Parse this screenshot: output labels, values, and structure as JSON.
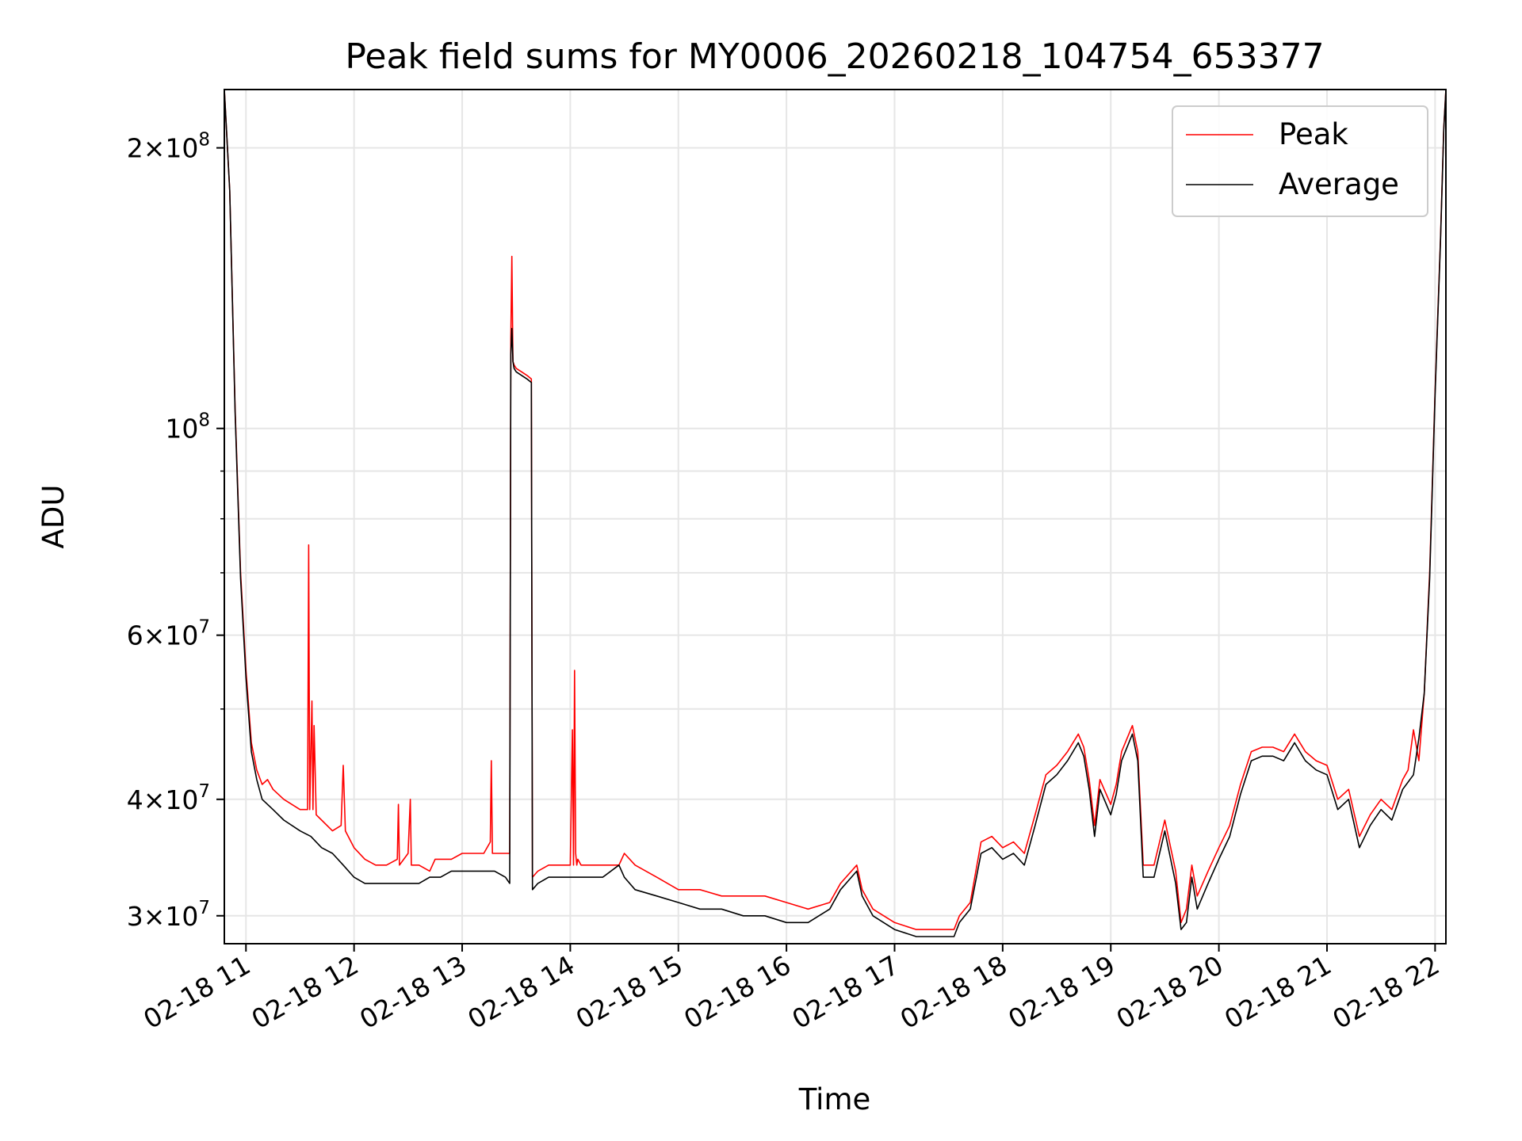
{
  "chart_data": {
    "type": "line",
    "title": "Peak field sums for MY0006_20260218_104754_653377",
    "xlabel": "Time",
    "ylabel": "ADU",
    "xscale": "linear (hours)",
    "yscale": "log",
    "xlim_hours": [
      10.8,
      22.1
    ],
    "ylim": [
      28000000,
      231000000
    ],
    "grid": true,
    "legend_position": "top-right",
    "x_ticks": [
      {
        "value": 11,
        "label": "02-18 11"
      },
      {
        "value": 12,
        "label": "02-18 12"
      },
      {
        "value": 13,
        "label": "02-18 13"
      },
      {
        "value": 14,
        "label": "02-18 14"
      },
      {
        "value": 15,
        "label": "02-18 15"
      },
      {
        "value": 16,
        "label": "02-18 16"
      },
      {
        "value": 17,
        "label": "02-18 17"
      },
      {
        "value": 18,
        "label": "02-18 18"
      },
      {
        "value": 19,
        "label": "02-18 19"
      },
      {
        "value": 20,
        "label": "02-18 20"
      },
      {
        "value": 21,
        "label": "02-18 21"
      },
      {
        "value": 22,
        "label": "02-18 22"
      }
    ],
    "y_ticks": [
      {
        "value": 30000000,
        "base": "3×10",
        "exp": "7"
      },
      {
        "value": 40000000,
        "base": "4×10",
        "exp": "7"
      },
      {
        "value": 60000000,
        "base": "6×10",
        "exp": "7"
      },
      {
        "value": 100000000,
        "base": "10",
        "exp": "8"
      },
      {
        "value": 200000000,
        "base": "2×10",
        "exp": "8"
      }
    ],
    "y_minor_ticks": [
      50000000,
      70000000,
      80000000,
      90000000
    ],
    "series": [
      {
        "name": "Peak",
        "color": "#ff0000",
        "x": [
          10.8,
          10.85,
          10.9,
          10.95,
          11.0,
          11.05,
          11.1,
          11.15,
          11.2,
          11.25,
          11.35,
          11.5,
          11.57,
          11.58,
          11.59,
          11.61,
          11.62,
          11.63,
          11.65,
          11.7,
          11.8,
          11.88,
          11.9,
          11.92,
          12.0,
          12.1,
          12.2,
          12.3,
          12.4,
          12.41,
          12.42,
          12.5,
          12.52,
          12.53,
          12.6,
          12.7,
          12.75,
          12.8,
          12.9,
          13.0,
          13.2,
          13.26,
          13.27,
          13.28,
          13.4,
          13.44,
          13.45,
          13.46,
          13.47,
          13.48,
          13.5,
          13.55,
          13.6,
          13.64,
          13.65,
          13.7,
          13.8,
          14.0,
          14.02,
          14.03,
          14.04,
          14.05,
          14.06,
          14.07,
          14.1,
          14.3,
          14.45,
          14.5,
          14.6,
          14.8,
          15.0,
          15.2,
          15.4,
          15.6,
          15.8,
          16.0,
          16.2,
          16.4,
          16.5,
          16.65,
          16.7,
          16.8,
          17.0,
          17.2,
          17.4,
          17.55,
          17.6,
          17.7,
          17.8,
          17.9,
          18.0,
          18.1,
          18.2,
          18.3,
          18.4,
          18.5,
          18.6,
          18.7,
          18.75,
          18.8,
          18.85,
          18.9,
          19.0,
          19.05,
          19.1,
          19.2,
          19.25,
          19.3,
          19.4,
          19.5,
          19.6,
          19.65,
          19.7,
          19.75,
          19.8,
          19.9,
          20.0,
          20.1,
          20.2,
          20.3,
          20.4,
          20.5,
          20.6,
          20.7,
          20.8,
          20.9,
          21.0,
          21.1,
          21.2,
          21.3,
          21.4,
          21.5,
          21.6,
          21.7,
          21.75,
          21.8,
          21.85,
          21.9,
          21.95,
          22.0,
          22.05,
          22.08,
          22.1
        ],
        "values": [
          231000000,
          180000000,
          105000000,
          70000000,
          55000000,
          46000000,
          43000000,
          41500000,
          42000000,
          41000000,
          40000000,
          39000000,
          39000000,
          75000000,
          39000000,
          51000000,
          39000000,
          48000000,
          38500000,
          38000000,
          37000000,
          37500000,
          43500000,
          37000000,
          35500000,
          34500000,
          34000000,
          34000000,
          34500000,
          39500000,
          34000000,
          35000000,
          40000000,
          34000000,
          34000000,
          33500000,
          34500000,
          34500000,
          34500000,
          35000000,
          35000000,
          36000000,
          44000000,
          35000000,
          35000000,
          35000000,
          125000000,
          153000000,
          118000000,
          117000000,
          116000000,
          115000000,
          114000000,
          113000000,
          33000000,
          33500000,
          34000000,
          34000000,
          47500000,
          34000000,
          55000000,
          35000000,
          34000000,
          34500000,
          34000000,
          34000000,
          34000000,
          35000000,
          34000000,
          33000000,
          32000000,
          32000000,
          31500000,
          31500000,
          31500000,
          31000000,
          30500000,
          31000000,
          32500000,
          34000000,
          32000000,
          30500000,
          29500000,
          29000000,
          29000000,
          29000000,
          30000000,
          31000000,
          36000000,
          36500000,
          35500000,
          36000000,
          35000000,
          38500000,
          42500000,
          43500000,
          45000000,
          47000000,
          45500000,
          42000000,
          37500000,
          42000000,
          39500000,
          41500000,
          45000000,
          48000000,
          45000000,
          34000000,
          34000000,
          38000000,
          33500000,
          29500000,
          30500000,
          34000000,
          31500000,
          33500000,
          35500000,
          37500000,
          41500000,
          45000000,
          45500000,
          45500000,
          45000000,
          47000000,
          45000000,
          44000000,
          43500000,
          40000000,
          41000000,
          36500000,
          38500000,
          40000000,
          39000000,
          42000000,
          43000000,
          47500000,
          44000000,
          52000000,
          70000000,
          110000000,
          160000000,
          210000000,
          231000000
        ]
      },
      {
        "name": "Average",
        "color": "#000000",
        "x": [
          10.8,
          10.85,
          10.9,
          10.95,
          11.0,
          11.05,
          11.1,
          11.15,
          11.2,
          11.25,
          11.35,
          11.5,
          11.6,
          11.7,
          11.8,
          11.9,
          12.0,
          12.1,
          12.2,
          12.3,
          12.4,
          12.5,
          12.6,
          12.7,
          12.8,
          12.9,
          13.0,
          13.2,
          13.3,
          13.4,
          13.44,
          13.45,
          13.46,
          13.47,
          13.48,
          13.5,
          13.55,
          13.6,
          13.64,
          13.65,
          13.7,
          13.8,
          14.0,
          14.1,
          14.3,
          14.45,
          14.5,
          14.6,
          14.8,
          15.0,
          15.2,
          15.4,
          15.6,
          15.8,
          16.0,
          16.2,
          16.4,
          16.5,
          16.65,
          16.7,
          16.8,
          17.0,
          17.2,
          17.4,
          17.55,
          17.6,
          17.7,
          17.8,
          17.9,
          18.0,
          18.1,
          18.2,
          18.3,
          18.4,
          18.5,
          18.6,
          18.7,
          18.75,
          18.8,
          18.85,
          18.9,
          19.0,
          19.05,
          19.1,
          19.2,
          19.25,
          19.3,
          19.4,
          19.5,
          19.6,
          19.65,
          19.7,
          19.75,
          19.8,
          19.9,
          20.0,
          20.1,
          20.2,
          20.3,
          20.4,
          20.5,
          20.6,
          20.7,
          20.8,
          20.9,
          21.0,
          21.1,
          21.2,
          21.3,
          21.4,
          21.5,
          21.6,
          21.7,
          21.8,
          21.85,
          21.9,
          21.95,
          22.0,
          22.05,
          22.08,
          22.1
        ],
        "values": [
          231000000,
          180000000,
          104000000,
          69000000,
          54000000,
          45000000,
          42000000,
          40000000,
          39500000,
          39000000,
          38000000,
          37000000,
          36500000,
          35500000,
          35000000,
          34000000,
          33000000,
          32500000,
          32500000,
          32500000,
          32500000,
          32500000,
          32500000,
          33000000,
          33000000,
          33500000,
          33500000,
          33500000,
          33500000,
          33000000,
          32500000,
          120000000,
          128000000,
          118000000,
          116000000,
          115000000,
          114000000,
          113000000,
          112000000,
          32000000,
          32500000,
          33000000,
          33000000,
          33000000,
          33000000,
          34000000,
          33000000,
          32000000,
          31500000,
          31000000,
          30500000,
          30500000,
          30000000,
          30000000,
          29500000,
          29500000,
          30500000,
          32000000,
          33500000,
          31500000,
          30000000,
          29000000,
          28500000,
          28500000,
          28500000,
          29500000,
          30500000,
          35000000,
          35500000,
          34500000,
          35000000,
          34000000,
          37500000,
          41500000,
          42500000,
          44000000,
          46000000,
          44500000,
          41000000,
          36500000,
          41000000,
          38500000,
          40500000,
          44000000,
          47000000,
          44000000,
          33000000,
          33000000,
          37000000,
          32500000,
          29000000,
          29500000,
          33000000,
          30500000,
          32500000,
          34500000,
          36500000,
          40500000,
          44000000,
          44500000,
          44500000,
          44000000,
          46000000,
          44000000,
          43000000,
          42500000,
          39000000,
          40000000,
          35500000,
          37500000,
          39000000,
          38000000,
          41000000,
          42500000,
          46500000,
          52000000,
          69000000,
          109000000,
          159000000,
          209000000,
          231000000
        ]
      }
    ]
  }
}
